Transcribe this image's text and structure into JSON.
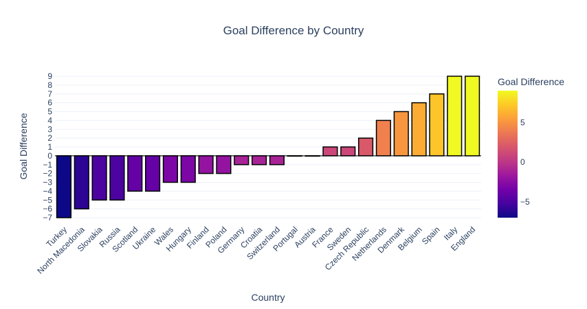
{
  "chart_data": {
    "type": "bar",
    "title": "Goal Difference by Country",
    "xlabel": "Country",
    "ylabel": "Goal Difference",
    "categories": [
      "Turkey",
      "North Macedonia",
      "Slovakia",
      "Russia",
      "Scotland",
      "Ukraine",
      "Wales",
      "Hungary",
      "Finland",
      "Poland",
      "Germany",
      "Croatia",
      "Switzerland",
      "Portugal",
      "Austria",
      "France",
      "Sweden",
      "Czech Republic",
      "Netherlands",
      "Denmark",
      "Belgium",
      "Spain",
      "Italy",
      "England"
    ],
    "values": [
      -7,
      -6,
      -5,
      -5,
      -4,
      -4,
      -3,
      -3,
      -2,
      -2,
      -1,
      -1,
      -1,
      0,
      0,
      1,
      1,
      2,
      4,
      5,
      6,
      7,
      9,
      9
    ],
    "ylim": [
      -7,
      9
    ],
    "yticks": [
      "9",
      "8",
      "7",
      "6",
      "5",
      "4",
      "3",
      "2",
      "1",
      "0",
      "−1",
      "−2",
      "−3",
      "−4",
      "−5",
      "−6",
      "−7"
    ],
    "grid": true,
    "legend": "none",
    "colorbar": {
      "title": "Goal Difference",
      "range": [
        -7,
        9
      ],
      "ticks": [
        "5",
        "0",
        "−5"
      ],
      "colorscale": "plasma"
    }
  }
}
